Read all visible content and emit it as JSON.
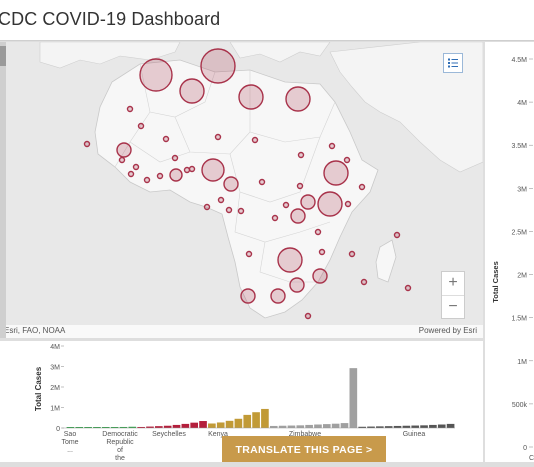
{
  "header": {
    "title": "CDC COVID-19 Dashboard"
  },
  "map": {
    "attribution_left": "Esri, FAO, NOAA",
    "attribution_right": "Powered by Esri",
    "legend_icon": "legend-list-icon",
    "zoom_in": "+",
    "zoom_out": "−",
    "bubble_color": "#a8324a"
  },
  "bottom_chart": {
    "chart_data": {
      "type": "bar",
      "ylabel": "Total Cases",
      "yticks": [
        "4M",
        "3M",
        "2M",
        "1M",
        "0"
      ],
      "ylim": [
        0,
        4000000
      ],
      "xtick_labels": [
        {
          "lines": [
            "Sao",
            "Tome",
            "..."
          ]
        },
        {
          "lines": [
            "Democratic",
            "Republic",
            "of",
            "the"
          ]
        },
        {
          "lines": [
            "Seychelles"
          ]
        },
        {
          "lines": [
            "Kenya"
          ]
        },
        {
          "lines": [
            "Zimbabwe"
          ]
        },
        {
          "lines": [
            "Guinea"
          ]
        }
      ],
      "series": [
        {
          "color": "#2e9c45",
          "values": [
            20000,
            25000,
            30000,
            35000,
            40000,
            45000,
            50000,
            60000
          ]
        },
        {
          "color": "#b41f3c",
          "values": [
            50000,
            70000,
            90000,
            110000,
            150000,
            200000,
            260000,
            340000
          ]
        },
        {
          "color": "#c19a36",
          "values": [
            220000,
            270000,
            350000,
            450000,
            640000,
            770000,
            930000
          ]
        },
        {
          "color": "#a0a0a0",
          "values": [
            100000,
            110000,
            120000,
            130000,
            150000,
            170000,
            190000,
            210000,
            240000,
            2920000
          ]
        },
        {
          "color": "#555555",
          "values": [
            60000,
            70000,
            80000,
            90000,
            100000,
            110000,
            120000,
            130000,
            150000,
            170000,
            200000
          ]
        }
      ]
    }
  },
  "right_chart": {
    "chart_data": {
      "type": "bar",
      "ylabel": "Total Cases",
      "yticks": [
        "4.5M",
        "4M",
        "3.5M",
        "3M",
        "2.5M",
        "2M",
        "1.5M",
        "1M",
        "500k",
        "0"
      ],
      "ylim": [
        0,
        4500000
      ]
    },
    "partial_label": "C"
  },
  "translate": {
    "label": "TRANSLATE THIS PAGE >"
  }
}
